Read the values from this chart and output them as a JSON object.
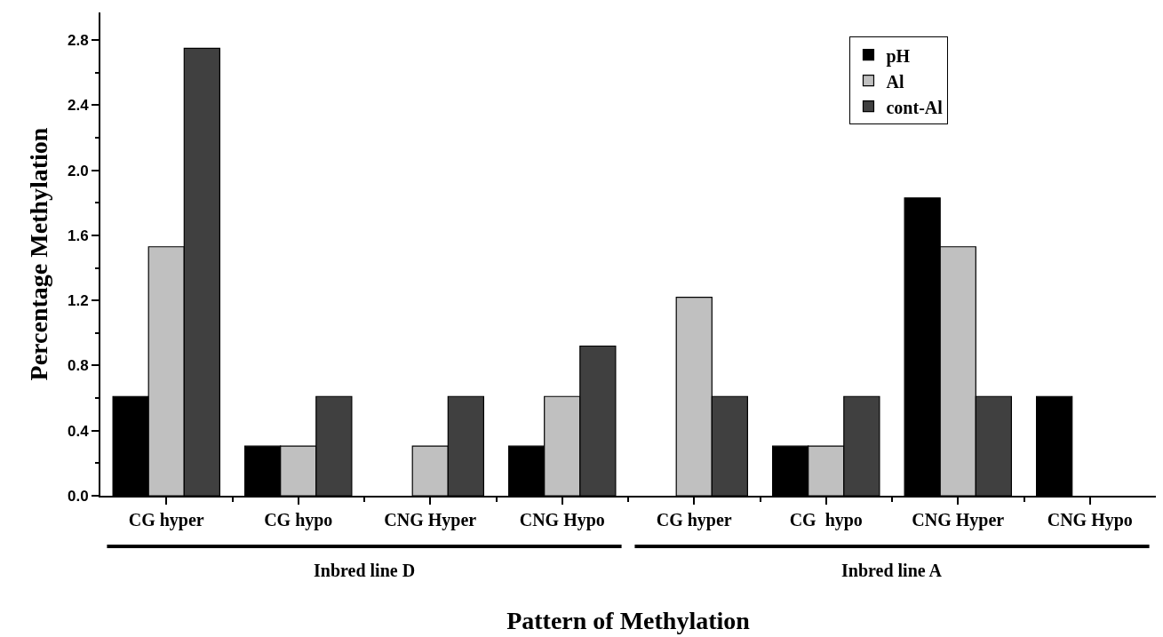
{
  "chart_data": {
    "type": "bar",
    "xlabel": "Pattern of Methylation",
    "ylabel": "Percentage Methylation",
    "categories": [
      "CG hyper",
      "CG hypo",
      "CNG Hyper",
      "CNG Hypo",
      "CG hyper",
      "CG  hypo",
      "CNG Hyper",
      "CNG Hypo"
    ],
    "series": [
      {
        "name": "pH",
        "color": "#000000",
        "values": [
          0.61,
          0.305,
          0,
          0.305,
          0,
          0.305,
          1.83,
          0.61
        ]
      },
      {
        "name": "Al",
        "color": "#c0c0c0",
        "values": [
          1.53,
          0.305,
          0.305,
          0.61,
          1.22,
          0.305,
          1.53,
          0
        ]
      },
      {
        "name": "cont-Al",
        "color": "#404040",
        "values": [
          2.75,
          0.61,
          0.61,
          0.92,
          0.61,
          0.61,
          0.61,
          0
        ]
      }
    ],
    "annotations": [
      "Inbred line D",
      "Inbred line A"
    ],
    "ylim": [
      0,
      2.97
    ],
    "yticks": [
      {
        "value": 0,
        "label": "0.0"
      },
      0.4,
      0.8,
      1.2,
      1.6,
      {
        "value": 2,
        "label": "2.0"
      },
      2.4,
      2.8
    ],
    "legend": "top right"
  }
}
